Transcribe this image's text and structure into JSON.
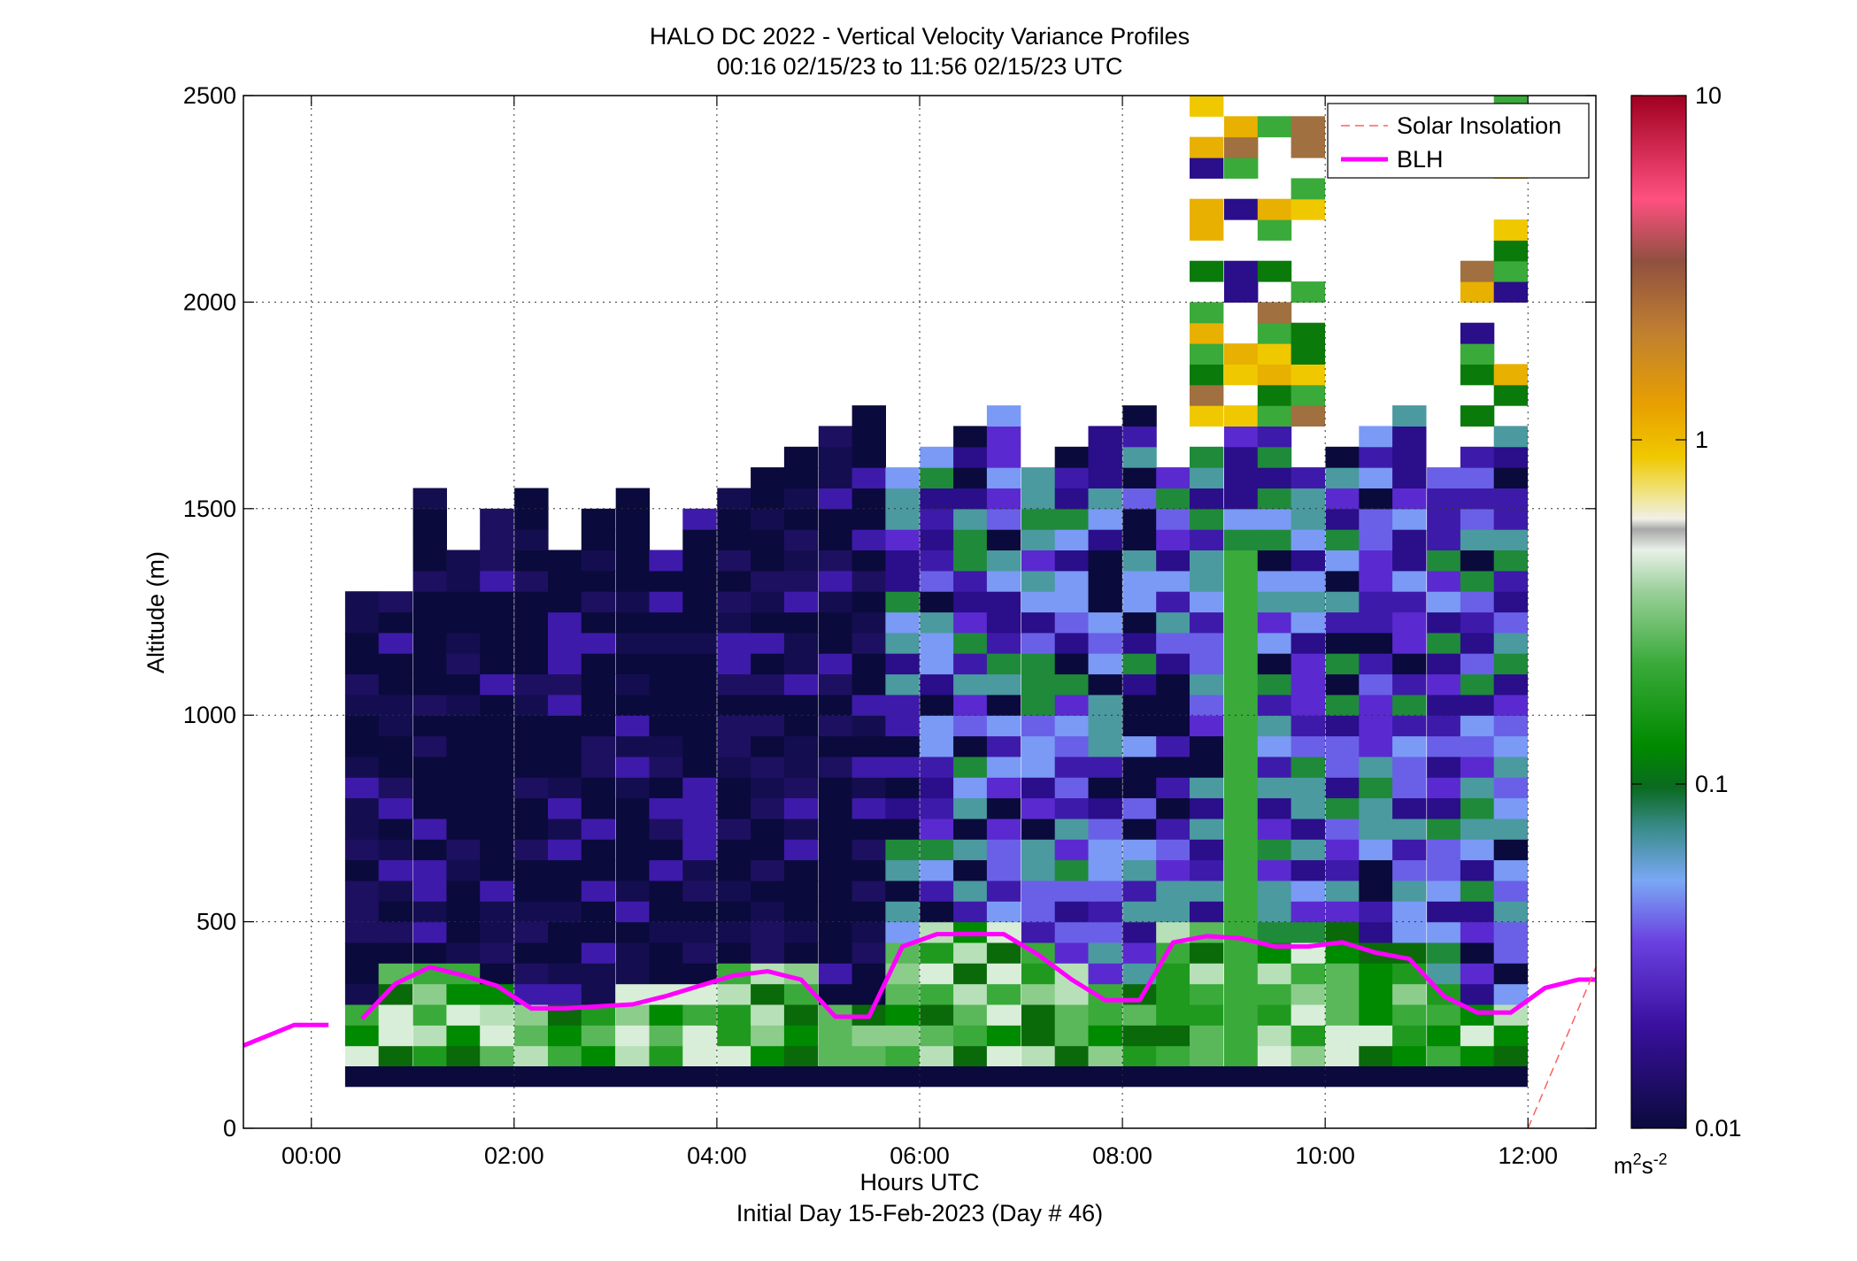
{
  "chart_data": {
    "type": "heatmap",
    "title": "HALO DC 2022 - Vertical Velocity Variance Profiles",
    "subtitle": "00:16 02/15/23 to 11:56 02/15/23  UTC",
    "xlabel": "Hours UTC",
    "xlabel2": "Initial Day 15-Feb-2023 (Day # 46)",
    "ylabel": "Altitude (m)",
    "xlim": [
      -0.67,
      12.67
    ],
    "ylim": [
      0,
      2500
    ],
    "x_ticks": [
      0,
      2,
      4,
      6,
      8,
      10,
      12
    ],
    "x_tick_labels": [
      "00:00",
      "02:00",
      "04:00",
      "06:00",
      "08:00",
      "10:00",
      "12:00"
    ],
    "y_ticks": [
      0,
      500,
      1000,
      1500,
      2000,
      2500
    ],
    "y_tick_labels": [
      "0",
      "500",
      "1000",
      "1500",
      "2000",
      "2500"
    ],
    "grid": true,
    "colorbar": {
      "scale": "log",
      "range": [
        0.01,
        10
      ],
      "ticks": [
        0.01,
        0.1,
        1,
        10
      ],
      "tick_labels": [
        "0.01",
        "0.1",
        "1",
        "10"
      ],
      "units_base": "m",
      "units_sup1": "2",
      "units_mid": "s",
      "units_sup2": "-2"
    },
    "legend": {
      "placement": "top-right",
      "entries": [
        {
          "label": "Solar Insolation",
          "color": "#ff6060",
          "style": "dashed"
        },
        {
          "label": "BLH",
          "color": "#ff00ff",
          "style": "solid"
        }
      ]
    },
    "profile_times_hours": [
      0.5,
      0.83,
      1.17,
      1.5,
      1.83,
      2.17,
      2.5,
      2.83,
      3.17,
      3.5,
      3.83,
      4.17,
      4.5,
      4.83,
      5.17,
      5.5,
      5.83,
      6.17,
      6.5,
      6.83,
      7.17,
      7.5,
      7.83,
      8.17,
      8.5,
      8.83,
      9.17,
      9.5,
      9.83,
      10.17,
      10.5,
      10.83,
      11.17,
      11.5,
      11.83
    ],
    "series": [
      {
        "name": "BLH",
        "x": [
          -0.67,
          -0.17,
          0.17,
          0.5,
          0.83,
          1.17,
          1.5,
          1.83,
          2.17,
          2.5,
          2.83,
          3.17,
          3.5,
          3.83,
          4.17,
          4.5,
          4.83,
          5.17,
          5.5,
          5.83,
          6.17,
          6.5,
          6.83,
          7.17,
          7.5,
          7.83,
          8.17,
          8.5,
          8.83,
          9.17,
          9.5,
          9.83,
          10.17,
          10.5,
          10.83,
          11.17,
          11.5,
          11.83,
          12.17,
          12.5,
          12.67
        ],
        "y": [
          200,
          250,
          250,
          265,
          350,
          390,
          370,
          345,
          290,
          290,
          295,
          300,
          320,
          345,
          370,
          380,
          360,
          270,
          270,
          440,
          470,
          470,
          470,
          420,
          360,
          310,
          310,
          450,
          465,
          460,
          440,
          440,
          450,
          425,
          410,
          320,
          280,
          280,
          340,
          360,
          360
        ],
        "break_after_index": 2
      },
      {
        "name": "Solar Insolation",
        "x": [
          12.0,
          12.67
        ],
        "y": [
          0,
          390
        ]
      }
    ]
  }
}
